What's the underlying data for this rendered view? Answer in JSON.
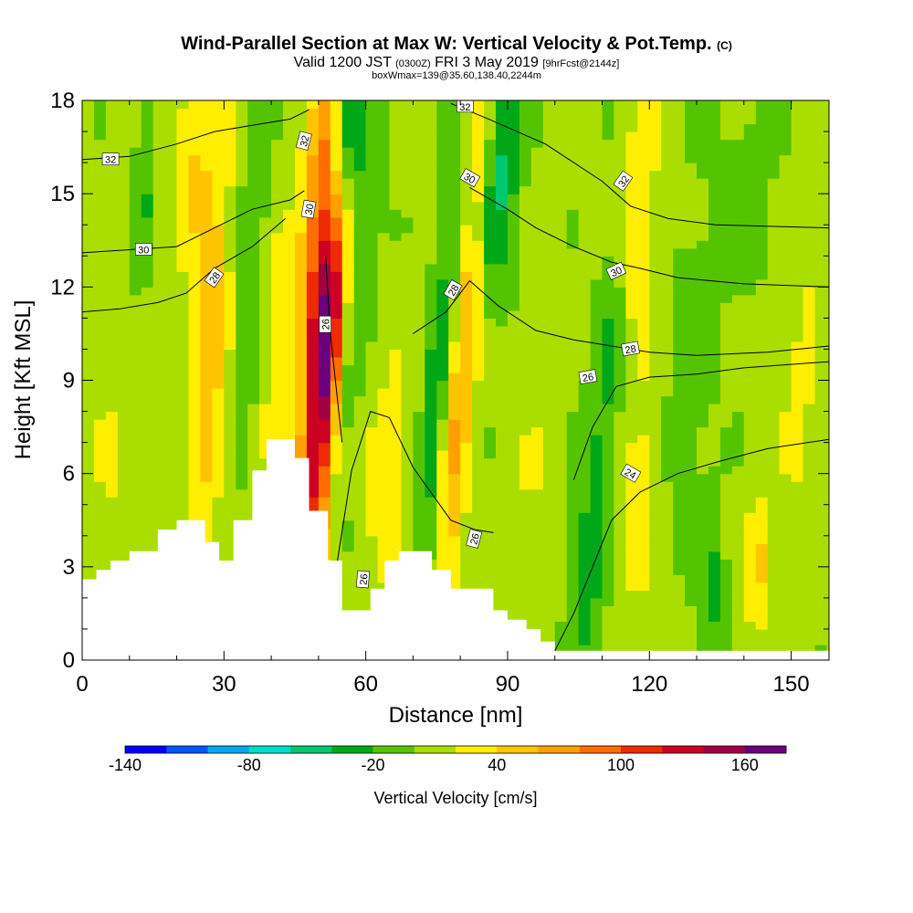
{
  "header": {
    "title": "Wind-Parallel Section at Max W: Vertical Velocity & Pot.Temp.",
    "title_unit": "(C)",
    "valid_prefix": "Valid 1200 JST",
    "valid_utc": "(0300Z)",
    "valid_date": "FRI 3 May 2019",
    "forecast_info": "[9hrFcst@2144z]",
    "box_info": "boxWmax=139@35.60,138.40,2244m"
  },
  "chart_data": {
    "type": "heatmap",
    "xlabel": "Distance [nm]",
    "ylabel": "Height [Kft MSL]",
    "xlim": [
      0,
      158
    ],
    "ylim": [
      0,
      18
    ],
    "x_ticks": [
      0,
      30,
      60,
      90,
      120,
      150
    ],
    "y_ticks": [
      0,
      3,
      6,
      9,
      12,
      15,
      18
    ],
    "grid": false,
    "colorbar": {
      "label": "Vertical Velocity [cm/s]",
      "min": -140,
      "max": 180,
      "step": 20,
      "tick_labels": [
        -140,
        -80,
        -20,
        40,
        100,
        160
      ],
      "colors": [
        "#0000ff",
        "#0055ff",
        "#00aaee",
        "#00ddcc",
        "#00c870",
        "#00a818",
        "#55c400",
        "#aade00",
        "#ffee00",
        "#ffc400",
        "#ffa000",
        "#ff6c00",
        "#ee2a00",
        "#cc0022",
        "#a00044",
        "#6a0080"
      ]
    },
    "terrain": [
      [
        0,
        2.6
      ],
      [
        3,
        2.6
      ],
      [
        3,
        2.9
      ],
      [
        6,
        2.9
      ],
      [
        6,
        3.2
      ],
      [
        10,
        3.2
      ],
      [
        10,
        3.5
      ],
      [
        16,
        3.5
      ],
      [
        16,
        4.2
      ],
      [
        20,
        4.2
      ],
      [
        20,
        4.5
      ],
      [
        26,
        4.5
      ],
      [
        26,
        3.8
      ],
      [
        29,
        3.8
      ],
      [
        29,
        3.2
      ],
      [
        32,
        3.2
      ],
      [
        32,
        4.5
      ],
      [
        36,
        4.5
      ],
      [
        36,
        6.1
      ],
      [
        39,
        6.1
      ],
      [
        39,
        7.1
      ],
      [
        45,
        7.1
      ],
      [
        45,
        6.5
      ],
      [
        48,
        6.5
      ],
      [
        48,
        4.8
      ],
      [
        52,
        4.8
      ],
      [
        52,
        3.2
      ],
      [
        55,
        3.2
      ],
      [
        55,
        1.6
      ],
      [
        61,
        1.6
      ],
      [
        61,
        2.3
      ],
      [
        64,
        2.3
      ],
      [
        64,
        3.2
      ],
      [
        67,
        3.2
      ],
      [
        67,
        3.5
      ],
      [
        74,
        3.5
      ],
      [
        74,
        2.9
      ],
      [
        78,
        2.9
      ],
      [
        78,
        2.3
      ],
      [
        87,
        2.3
      ],
      [
        87,
        1.6
      ],
      [
        90,
        1.6
      ],
      [
        90,
        1.3
      ],
      [
        94,
        1.3
      ],
      [
        94,
        1.0
      ],
      [
        97,
        1.0
      ],
      [
        97,
        0.6
      ],
      [
        100,
        0.6
      ],
      [
        100,
        0.3
      ],
      [
        158,
        0.3
      ]
    ],
    "w_features": [
      {
        "x": 51.5,
        "y": 10,
        "sx": 2.6,
        "sy": 5.5,
        "tilt": 0.5,
        "w": 170
      },
      {
        "x": 50,
        "y": 15,
        "sx": 2.4,
        "sy": 3.5,
        "tilt": 0.5,
        "w": 70
      },
      {
        "x": 55.5,
        "y": 16.5,
        "sx": 2.5,
        "sy": 2.5,
        "tilt": 0.6,
        "w": -100
      },
      {
        "x": 57,
        "y": 11,
        "sx": 2.5,
        "sy": 5,
        "tilt": 0.6,
        "w": -30
      },
      {
        "x": 80,
        "y": 9,
        "sx": 2.4,
        "sy": 7,
        "tilt": 0.6,
        "w": 65
      },
      {
        "x": 75,
        "y": 8,
        "sx": 2.3,
        "sy": 6,
        "tilt": 0.6,
        "w": -45
      },
      {
        "x": 88,
        "y": 15.5,
        "sx": 3,
        "sy": 3,
        "tilt": 0.6,
        "w": -55
      },
      {
        "x": 27,
        "y": 10,
        "sx": 2.6,
        "sy": 5,
        "tilt": 0.3,
        "w": 50
      },
      {
        "x": 23,
        "y": 16,
        "sx": 3,
        "sy": 2.5,
        "tilt": 0.3,
        "w": 35
      },
      {
        "x": 13,
        "y": 15,
        "sx": 1.5,
        "sy": 2.5,
        "tilt": 0.2,
        "w": -25
      },
      {
        "x": 36,
        "y": 13,
        "sx": 2,
        "sy": 4,
        "tilt": 0.3,
        "w": -25
      },
      {
        "x": 42,
        "y": 10,
        "sx": 2.5,
        "sy": 3,
        "tilt": 0.3,
        "w": 30
      },
      {
        "x": 65,
        "y": 6,
        "sx": 3.5,
        "sy": 2.5,
        "tilt": 0.4,
        "w": 35
      },
      {
        "x": 117,
        "y": 14,
        "sx": 3,
        "sy": 3,
        "tilt": 0.3,
        "w": 40
      },
      {
        "x": 112,
        "y": 10,
        "sx": 2.5,
        "sy": 4,
        "tilt": 0.4,
        "w": -30
      },
      {
        "x": 118,
        "y": 5,
        "sx": 3,
        "sy": 3,
        "tilt": 0.4,
        "w": 25
      },
      {
        "x": 107,
        "y": 3,
        "sx": 2.5,
        "sy": 3,
        "tilt": 0.3,
        "w": -30
      },
      {
        "x": 133,
        "y": 2,
        "sx": 2,
        "sy": 2,
        "tilt": 0.2,
        "w": -30
      },
      {
        "x": 143,
        "y": 3,
        "sx": 2,
        "sy": 1.5,
        "tilt": 0.2,
        "w": 40
      },
      {
        "x": 128,
        "y": 9,
        "sx": 4,
        "sy": 4,
        "tilt": 0.3,
        "w": -15
      },
      {
        "x": 152,
        "y": 9,
        "sx": 3,
        "sy": 4,
        "tilt": 0.3,
        "w": 20
      },
      {
        "x": 6,
        "y": 6,
        "sx": 4,
        "sy": 3,
        "tilt": 0.2,
        "w": 15
      },
      {
        "x": 95,
        "y": 5,
        "sx": 3,
        "sy": 3,
        "tilt": 0.3,
        "w": 15
      },
      {
        "x": 140,
        "y": 15,
        "sx": 5,
        "sy": 3,
        "tilt": 0.3,
        "w": -12
      }
    ],
    "theta_contours": [
      {
        "value": 24,
        "points": [
          [
            100,
            0.3
          ],
          [
            104,
            1.5
          ],
          [
            108,
            3
          ],
          [
            112,
            4.5
          ],
          [
            118,
            5.4
          ],
          [
            126,
            6
          ],
          [
            135,
            6.4
          ],
          [
            145,
            6.8
          ],
          [
            158,
            7.1
          ]
        ]
      },
      {
        "value": 26,
        "points": [
          [
            104,
            5.8
          ],
          [
            108,
            7.5
          ],
          [
            113,
            8.8
          ],
          [
            120,
            9.1
          ],
          [
            130,
            9.2
          ],
          [
            140,
            9.4
          ],
          [
            158,
            9.6
          ]
        ]
      },
      {
        "value": 26,
        "points": [
          [
            54,
            3.2
          ],
          [
            57,
            6.1
          ],
          [
            61,
            8
          ],
          [
            65,
            7.8
          ],
          [
            70,
            6.2
          ],
          [
            78,
            4.5
          ],
          [
            83,
            4.2
          ],
          [
            87,
            4.1
          ]
        ]
      },
      {
        "value": 26,
        "points": [
          [
            55,
            7
          ],
          [
            52.5,
            10.5
          ],
          [
            51.5,
            13
          ]
        ]
      },
      {
        "value": 28,
        "points": [
          [
            0,
            11.2
          ],
          [
            8,
            11.3
          ],
          [
            16,
            11.5
          ],
          [
            22,
            11.8
          ],
          [
            28,
            12.6
          ],
          [
            36,
            13.3
          ],
          [
            43,
            14.2
          ]
        ]
      },
      {
        "value": 28,
        "points": [
          [
            70,
            10.5
          ],
          [
            77,
            11.2
          ],
          [
            82,
            12.2
          ],
          [
            88,
            11.4
          ],
          [
            96,
            10.6
          ],
          [
            104,
            10.3
          ],
          [
            112,
            10.1
          ],
          [
            120,
            9.9
          ],
          [
            130,
            9.8
          ],
          [
            145,
            9.9
          ],
          [
            158,
            10.1
          ]
        ]
      },
      {
        "value": 30,
        "points": [
          [
            0,
            13.1
          ],
          [
            10,
            13.2
          ],
          [
            20,
            13.3
          ],
          [
            28,
            13.9
          ],
          [
            36,
            14.5
          ],
          [
            44,
            14.8
          ],
          [
            47,
            15.1
          ]
        ]
      },
      {
        "value": 30,
        "points": [
          [
            82,
            15.2
          ],
          [
            90,
            14.5
          ],
          [
            96,
            13.9
          ],
          [
            104,
            13.3
          ],
          [
            112,
            12.8
          ],
          [
            118,
            12.6
          ],
          [
            126,
            12.3
          ],
          [
            140,
            12.1
          ],
          [
            158,
            12.0
          ]
        ]
      },
      {
        "value": 32,
        "points": [
          [
            0,
            16.1
          ],
          [
            10,
            16.2
          ],
          [
            20,
            16.6
          ],
          [
            28,
            17.0
          ],
          [
            36,
            17.2
          ],
          [
            44,
            17.4
          ],
          [
            48,
            17.7
          ]
        ]
      },
      {
        "value": 32,
        "points": [
          [
            78,
            17.9
          ],
          [
            86,
            17.4
          ],
          [
            92,
            17.0
          ],
          [
            98,
            16.6
          ],
          [
            104,
            16.0
          ],
          [
            110,
            15.4
          ],
          [
            116,
            14.6
          ],
          [
            124,
            14.2
          ],
          [
            134,
            14.0
          ],
          [
            158,
            13.9
          ]
        ]
      }
    ],
    "contour_labels": [
      {
        "text": "32",
        "x": 6,
        "y": 16.1,
        "angle": 0
      },
      {
        "text": "30",
        "x": 13,
        "y": 13.2,
        "angle": 0
      },
      {
        "text": "28",
        "x": 28,
        "y": 12.3,
        "angle": -55
      },
      {
        "text": "32",
        "x": 47,
        "y": 16.7,
        "angle": -75
      },
      {
        "text": "30",
        "x": 48,
        "y": 14.5,
        "angle": -80
      },
      {
        "text": "26",
        "x": 51.5,
        "y": 10.8,
        "angle": -90
      },
      {
        "text": "26",
        "x": 59.5,
        "y": 2.6,
        "angle": -85
      },
      {
        "text": "32",
        "x": 81,
        "y": 17.8,
        "angle": 0
      },
      {
        "text": "30",
        "x": 82,
        "y": 15.5,
        "angle": 30
      },
      {
        "text": "28",
        "x": 78.5,
        "y": 11.9,
        "angle": -60
      },
      {
        "text": "26",
        "x": 83,
        "y": 3.9,
        "angle": -75
      },
      {
        "text": "32",
        "x": 114.5,
        "y": 15.4,
        "angle": -55
      },
      {
        "text": "30",
        "x": 113,
        "y": 12.5,
        "angle": -25
      },
      {
        "text": "28",
        "x": 116,
        "y": 10.0,
        "angle": -10
      },
      {
        "text": "26",
        "x": 107,
        "y": 9.1,
        "angle": -10
      },
      {
        "text": "24",
        "x": 116,
        "y": 6.0,
        "angle": 30
      }
    ]
  }
}
